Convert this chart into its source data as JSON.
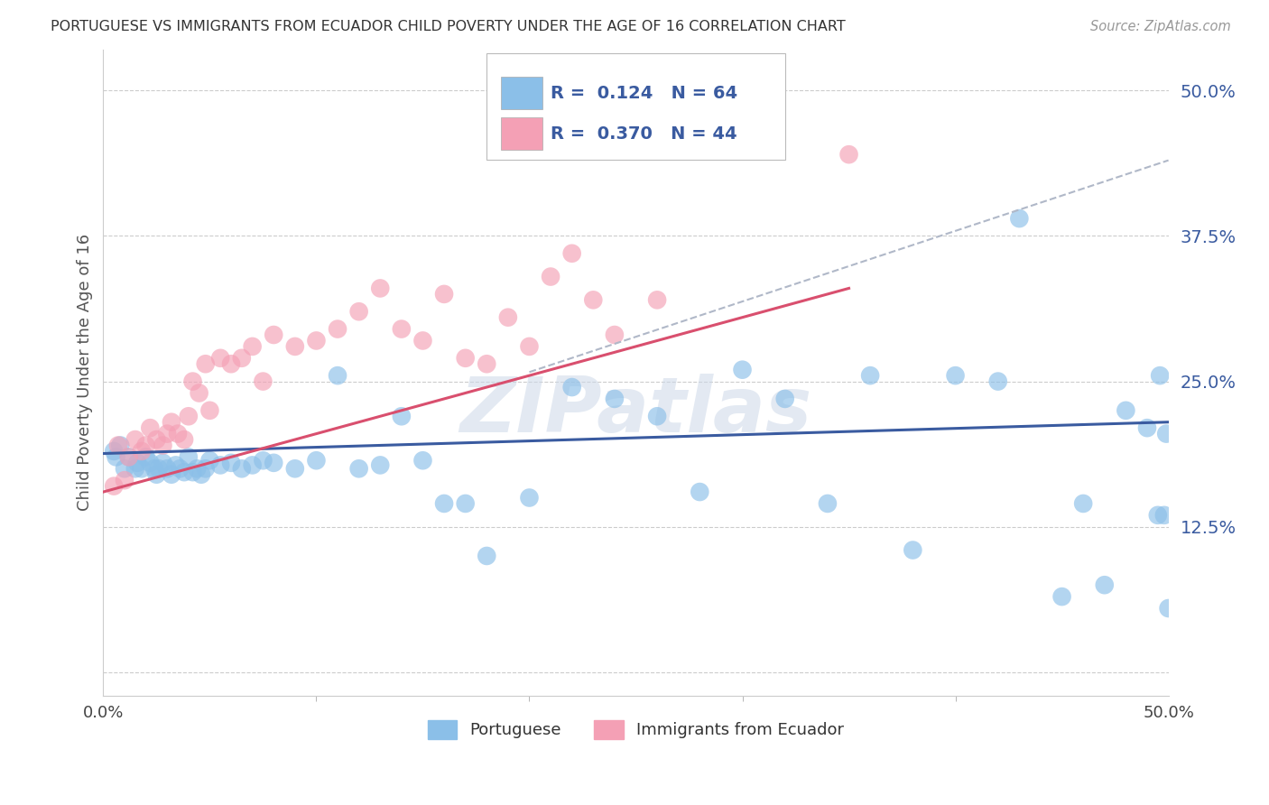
{
  "title": "PORTUGUESE VS IMMIGRANTS FROM ECUADOR CHILD POVERTY UNDER THE AGE OF 16 CORRELATION CHART",
  "source": "Source: ZipAtlas.com",
  "ylabel": "Child Poverty Under the Age of 16",
  "xlim": [
    0.0,
    0.5
  ],
  "ylim": [
    -0.02,
    0.535
  ],
  "yticks": [
    0.0,
    0.125,
    0.25,
    0.375,
    0.5
  ],
  "ytick_labels": [
    "",
    "12.5%",
    "25.0%",
    "37.5%",
    "50.0%"
  ],
  "legend_labels": [
    "Portuguese",
    "Immigrants from Ecuador"
  ],
  "R_portuguese": "0.124",
  "N_portuguese": 64,
  "R_ecuador": "0.370",
  "N_ecuador": 44,
  "color_portuguese": "#8bbfe8",
  "color_ecuador": "#f4a0b5",
  "line_color_portuguese": "#3a5ba0",
  "line_color_ecuador": "#d94f6e",
  "watermark_color": "#ccd8e8",
  "portuguese_x": [
    0.005,
    0.006,
    0.008,
    0.01,
    0.012,
    0.015,
    0.016,
    0.018,
    0.02,
    0.022,
    0.024,
    0.025,
    0.026,
    0.028,
    0.03,
    0.032,
    0.034,
    0.036,
    0.038,
    0.04,
    0.042,
    0.044,
    0.046,
    0.048,
    0.05,
    0.055,
    0.06,
    0.065,
    0.07,
    0.075,
    0.08,
    0.09,
    0.1,
    0.11,
    0.12,
    0.13,
    0.14,
    0.15,
    0.16,
    0.17,
    0.18,
    0.2,
    0.22,
    0.24,
    0.26,
    0.28,
    0.3,
    0.32,
    0.34,
    0.36,
    0.38,
    0.4,
    0.42,
    0.43,
    0.45,
    0.46,
    0.47,
    0.48,
    0.49,
    0.495,
    0.496,
    0.498,
    0.499,
    0.5
  ],
  "portuguese_y": [
    0.19,
    0.185,
    0.195,
    0.175,
    0.185,
    0.175,
    0.18,
    0.175,
    0.185,
    0.18,
    0.175,
    0.17,
    0.175,
    0.18,
    0.175,
    0.17,
    0.178,
    0.175,
    0.172,
    0.185,
    0.172,
    0.175,
    0.17,
    0.175,
    0.182,
    0.178,
    0.18,
    0.175,
    0.178,
    0.182,
    0.18,
    0.175,
    0.182,
    0.255,
    0.175,
    0.178,
    0.22,
    0.182,
    0.145,
    0.145,
    0.1,
    0.15,
    0.245,
    0.235,
    0.22,
    0.155,
    0.26,
    0.235,
    0.145,
    0.255,
    0.105,
    0.255,
    0.25,
    0.39,
    0.065,
    0.145,
    0.075,
    0.225,
    0.21,
    0.135,
    0.255,
    0.135,
    0.205,
    0.055
  ],
  "ecuador_x": [
    0.005,
    0.007,
    0.01,
    0.012,
    0.015,
    0.018,
    0.02,
    0.022,
    0.025,
    0.028,
    0.03,
    0.032,
    0.035,
    0.038,
    0.04,
    0.042,
    0.045,
    0.048,
    0.05,
    0.055,
    0.06,
    0.065,
    0.07,
    0.075,
    0.08,
    0.09,
    0.1,
    0.11,
    0.12,
    0.13,
    0.14,
    0.15,
    0.16,
    0.17,
    0.18,
    0.19,
    0.2,
    0.21,
    0.22,
    0.23,
    0.24,
    0.26,
    0.3,
    0.35
  ],
  "ecuador_y": [
    0.16,
    0.195,
    0.165,
    0.185,
    0.2,
    0.19,
    0.195,
    0.21,
    0.2,
    0.195,
    0.205,
    0.215,
    0.205,
    0.2,
    0.22,
    0.25,
    0.24,
    0.265,
    0.225,
    0.27,
    0.265,
    0.27,
    0.28,
    0.25,
    0.29,
    0.28,
    0.285,
    0.295,
    0.31,
    0.33,
    0.295,
    0.285,
    0.325,
    0.27,
    0.265,
    0.305,
    0.28,
    0.34,
    0.36,
    0.32,
    0.29,
    0.32,
    0.46,
    0.445
  ],
  "blue_line_x": [
    0.0,
    0.5
  ],
  "blue_line_y": [
    0.188,
    0.215
  ],
  "pink_line_x": [
    0.0,
    0.35
  ],
  "pink_line_y": [
    0.155,
    0.33
  ],
  "dash_line_x": [
    0.2,
    0.5
  ],
  "dash_line_y": [
    0.258,
    0.44
  ]
}
